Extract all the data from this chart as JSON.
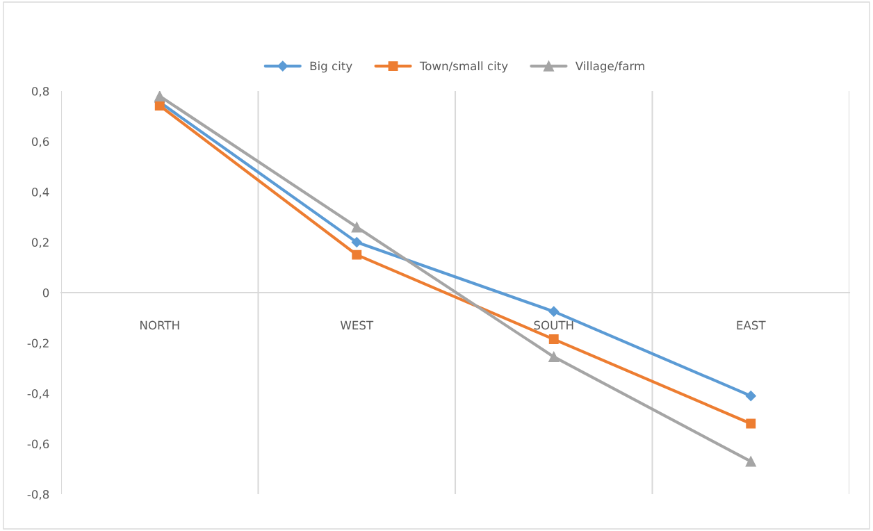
{
  "chart_data": {
    "type": "line",
    "categories": [
      "NORTH",
      "WEST",
      "SOUTH",
      "EAST"
    ],
    "series": [
      {
        "name": "Big city",
        "color": "#5b9bd5",
        "marker": "diamond",
        "values": [
          0.756,
          0.2,
          -0.075,
          -0.41
        ]
      },
      {
        "name": "Town/small city",
        "color": "#ed7d31",
        "marker": "square",
        "values": [
          0.742,
          0.15,
          -0.185,
          -0.52
        ]
      },
      {
        "name": "Village/farm",
        "color": "#a5a5a5",
        "marker": "triangle",
        "values": [
          0.78,
          0.26,
          -0.255,
          -0.67
        ]
      }
    ],
    "ylim": [
      -0.8,
      0.8
    ],
    "yticks": [
      {
        "value": -0.8,
        "label": "-0,8"
      },
      {
        "value": -0.6,
        "label": "-0,6"
      },
      {
        "value": -0.4,
        "label": "-0,4"
      },
      {
        "value": -0.2,
        "label": "-0,2"
      },
      {
        "value": 0,
        "label": "0"
      },
      {
        "value": 0.2,
        "label": "0,2"
      },
      {
        "value": 0.4,
        "label": "0,4"
      },
      {
        "value": 0.6,
        "label": "0,6"
      },
      {
        "value": 0.8,
        "label": "0,8"
      }
    ],
    "grid": "x",
    "legend": "top",
    "line_style": "solid"
  }
}
